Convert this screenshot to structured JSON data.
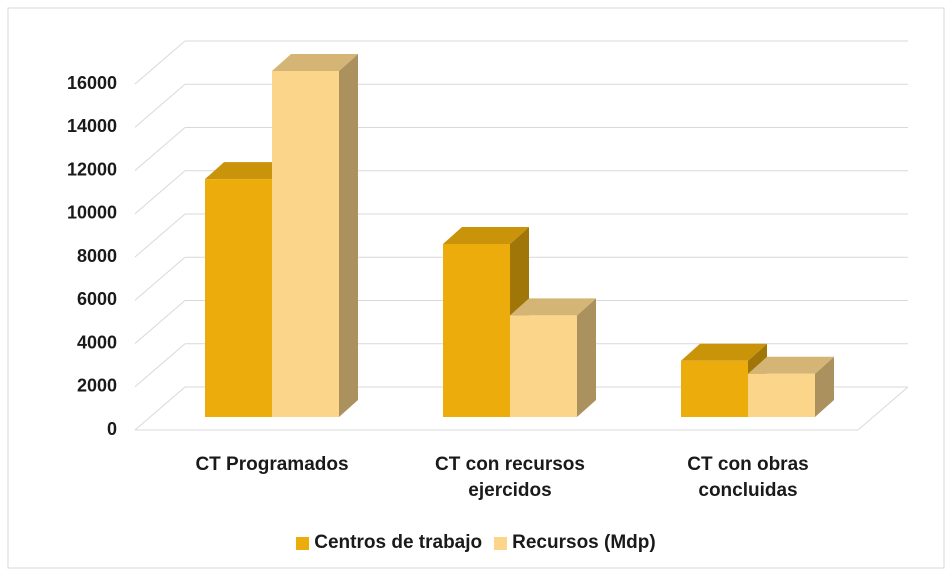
{
  "chart_data": {
    "type": "bar3d",
    "categories": [
      "CT Programados",
      "CT con recursos ejercidos",
      "CT con obras concluidas"
    ],
    "series": [
      {
        "name": "Centros de trabajo",
        "color": "#ecad0c",
        "values": [
          11000,
          8000,
          2600
        ]
      },
      {
        "name": "Recursos (Mdp)",
        "color": "#fbd58a",
        "values": [
          16000,
          4700,
          2000
        ]
      }
    ],
    "ylim": [
      0,
      16000
    ],
    "yticks": [
      0,
      2000,
      4000,
      6000,
      8000,
      10000,
      12000,
      14000,
      16000
    ],
    "grid": true,
    "legend": "bottom"
  }
}
